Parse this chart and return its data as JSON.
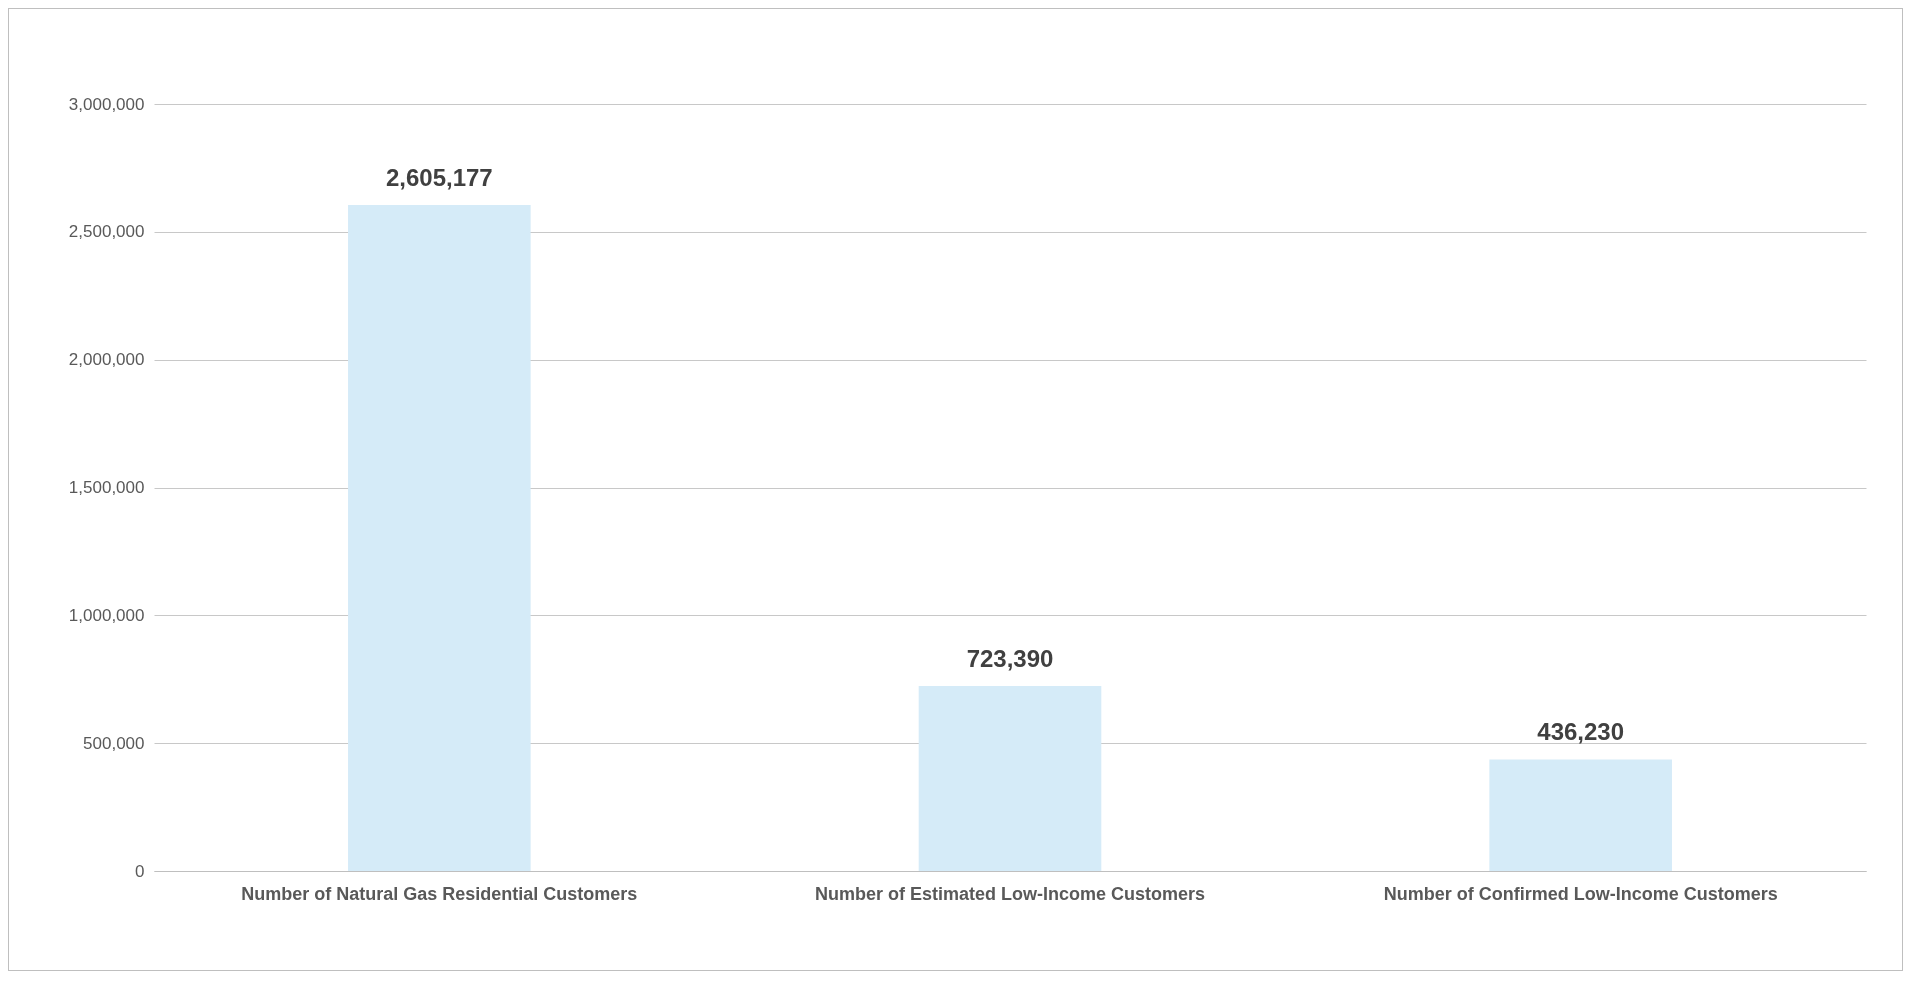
{
  "chart_data": {
    "type": "bar",
    "categories": [
      "Number of Natural Gas Residential Customers",
      "Number of Estimated Low-Income Customers",
      "Number of Confirmed Low-Income Customers"
    ],
    "values": [
      2605177,
      723390,
      436230
    ],
    "value_labels": [
      "2,605,177",
      "723,390",
      "436,230"
    ],
    "color": "#d5ebf8",
    "ylim": [
      0,
      3000000
    ],
    "yticks": [
      {
        "value": 0,
        "label": "0"
      },
      {
        "value": 500000,
        "label": "500,000"
      },
      {
        "value": 1000000,
        "label": "1,000,000"
      },
      {
        "value": 1500000,
        "label": "1,500,000"
      },
      {
        "value": 2000000,
        "label": "2,000,000"
      },
      {
        "value": 2500000,
        "label": "2,500,000"
      },
      {
        "value": 3000000,
        "label": "3,000,000"
      }
    ],
    "grid": "y"
  }
}
